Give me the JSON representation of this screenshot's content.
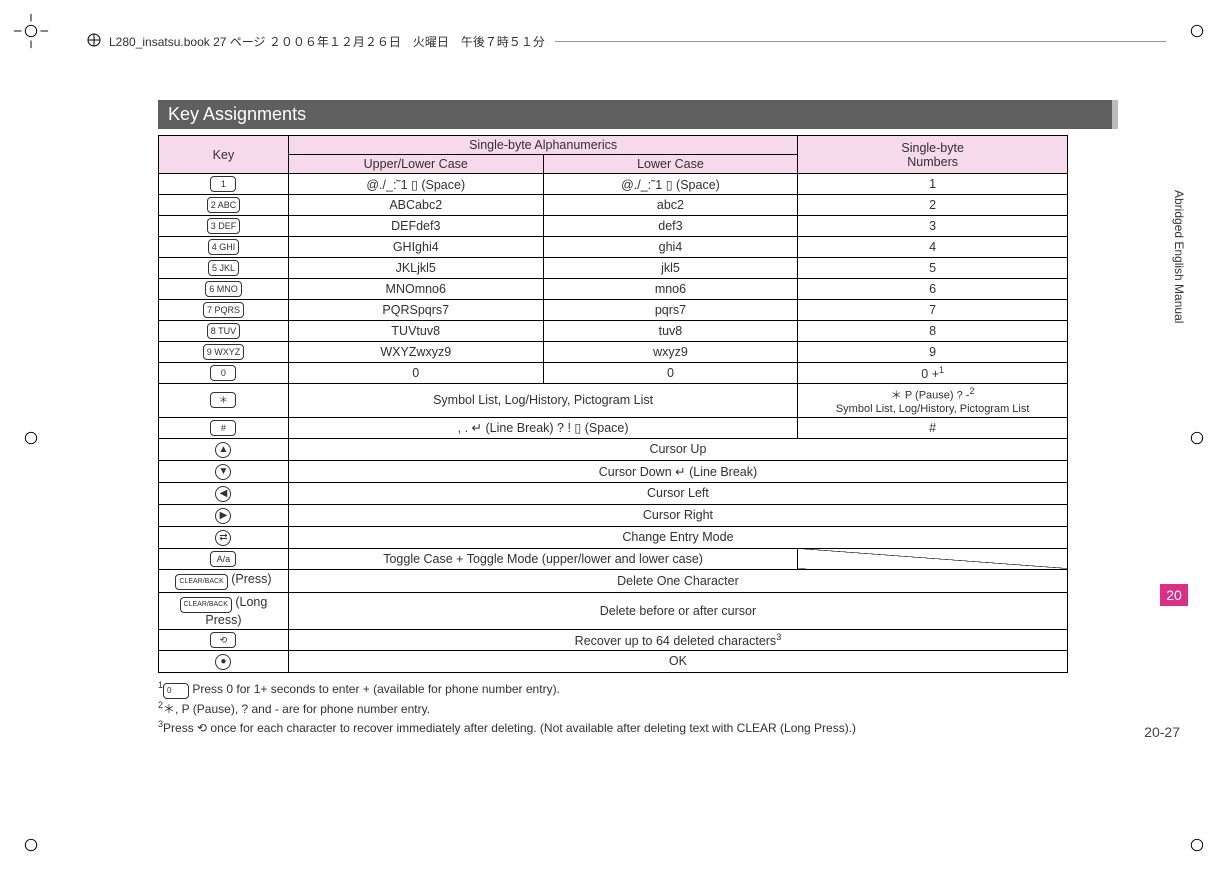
{
  "header_text": "L280_insatsu.book 27 ページ ２００６年１２月２６日　火曜日　午後７時５１分",
  "section_title": "Key Assignments",
  "side_tab_label": "Abridged English Manual",
  "side_num": "20",
  "page_num": "20-27",
  "table": {
    "header": {
      "key": "Key",
      "alpha": "Single-byte Alphanumerics",
      "upper_lower": "Upper/Lower Case",
      "lower": "Lower Case",
      "numbers": "Single-byte\nNumbers"
    },
    "rows": [
      {
        "key": "1",
        "ul": "@./_:˜1 ▯ (Space)",
        "lc": "@./_:˜1 ▯ (Space)",
        "num": "1"
      },
      {
        "key": "2 ABC",
        "ul": "ABCabc2",
        "lc": "abc2",
        "num": "2"
      },
      {
        "key": "3 DEF",
        "ul": "DEFdef3",
        "lc": "def3",
        "num": "3"
      },
      {
        "key": "4 GHI",
        "ul": "GHIghi4",
        "lc": "ghi4",
        "num": "4"
      },
      {
        "key": "5 JKL",
        "ul": "JKLjkl5",
        "lc": "jkl5",
        "num": "5"
      },
      {
        "key": "6 MNO",
        "ul": "MNOmno6",
        "lc": "mno6",
        "num": "6"
      },
      {
        "key": "7 PQRS",
        "ul": "PQRSpqrs7",
        "lc": "pqrs7",
        "num": "7"
      },
      {
        "key": "8 TUV",
        "ul": "TUVtuv8",
        "lc": "tuv8",
        "num": "8"
      },
      {
        "key": "9 WXYZ",
        "ul": "WXYZwxyz9",
        "lc": "wxyz9",
        "num": "9"
      },
      {
        "key": "0",
        "ul": "0",
        "lc": "0",
        "num": "0 +1"
      }
    ],
    "star_row": {
      "key": "＊",
      "merged": "Symbol List, Log/History, Pictogram List",
      "num": "＊ P (Pause) ? -2\nSymbol List, Log/History, Pictogram List"
    },
    "hash_row": {
      "key": "#",
      "merged": ", . ↵ (Line Break) ? ! ▯ (Space)",
      "num": "#"
    },
    "full_rows": [
      {
        "key": "up",
        "label": "Cursor Up"
      },
      {
        "key": "down",
        "label": "Cursor Down ↵ (Line Break)"
      },
      {
        "key": "left",
        "label": "Cursor Left"
      },
      {
        "key": "right",
        "label": "Cursor Right"
      },
      {
        "key": "mode",
        "label": "Change Entry Mode"
      }
    ],
    "toggle_row": {
      "key": "A/a",
      "label": "Toggle  Case + Toggle Mode (upper/lower and lower case)"
    },
    "final_rows": [
      {
        "key": "CLEAR (Press)",
        "label": "Delete One Character"
      },
      {
        "key": "CLEAR (Long Press)",
        "label": "Delete before or after cursor"
      },
      {
        "key": "recover",
        "label": "Recover up to 64 deleted characters3"
      },
      {
        "key": "ok",
        "label": "OK"
      }
    ]
  },
  "footnotes": {
    "f1": "Press 0 for 1+ seconds to enter + (available for phone number entry).",
    "f2": "＊, P (Pause), ? and - are for phone number entry.",
    "f3": "Press ⟲ once for each character to recover immediately after deleting. (Not available after deleting text with CLEAR (Long Press).)"
  },
  "colors": {
    "header_pink": "#f6d9ea",
    "title_bg": "#5f5f5f",
    "accent": "#db2f88",
    "border": "#000000",
    "text": "#313131"
  }
}
